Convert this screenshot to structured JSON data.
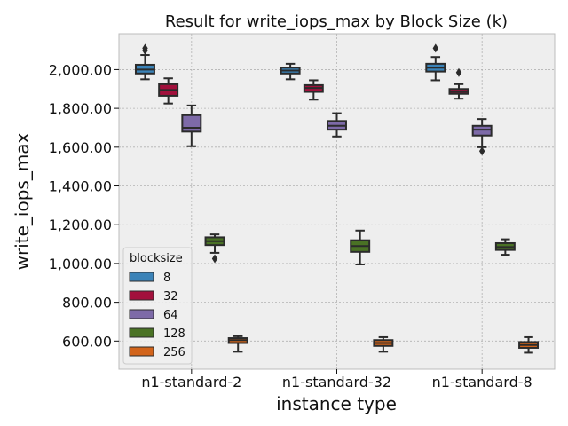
{
  "chart_data": {
    "type": "boxplot",
    "title": "Result for write_iops_max by Block Size (k)",
    "xlabel": "instance type",
    "ylabel": "write_iops_max",
    "categories": [
      "n1-standard-2",
      "n1-standard-32",
      "n1-standard-8"
    ],
    "ylim": [
      455,
      2185
    ],
    "yticks": [
      600,
      800,
      1000,
      1200,
      1400,
      1600,
      1800,
      2000
    ],
    "ytick_labels": [
      "600.00",
      "800.00",
      "1,000.00",
      "1,200.00",
      "1,400.00",
      "1,600.00",
      "1,800.00",
      "2,000.00"
    ],
    "grid": true,
    "legend": {
      "title": "blocksize",
      "position": "lower-left"
    },
    "series": [
      {
        "name": "8",
        "color": "#3b83b8",
        "boxes": [
          {
            "whislo": 1950,
            "q1": 1980,
            "med": 2000,
            "q3": 2025,
            "whishi": 2075,
            "fliers": [
              2098,
              2110
            ]
          },
          {
            "whislo": 1950,
            "q1": 1980,
            "med": 1995,
            "q3": 2010,
            "whishi": 2030,
            "fliers": []
          },
          {
            "whislo": 1945,
            "q1": 1990,
            "med": 2010,
            "q3": 2030,
            "whishi": 2065,
            "fliers": [
              2110
            ]
          }
        ]
      },
      {
        "name": "32",
        "color": "#a2103c",
        "boxes": [
          {
            "whislo": 1825,
            "q1": 1865,
            "med": 1895,
            "q3": 1925,
            "whishi": 1955,
            "fliers": []
          },
          {
            "whislo": 1845,
            "q1": 1885,
            "med": 1905,
            "q3": 1920,
            "whishi": 1945,
            "fliers": []
          },
          {
            "whislo": 1850,
            "q1": 1875,
            "med": 1885,
            "q3": 1900,
            "whishi": 1925,
            "fliers": [
              1985
            ]
          }
        ]
      },
      {
        "name": "64",
        "color": "#7d6aa8",
        "boxes": [
          {
            "whislo": 1605,
            "q1": 1680,
            "med": 1700,
            "q3": 1765,
            "whishi": 1815,
            "fliers": []
          },
          {
            "whislo": 1655,
            "q1": 1690,
            "med": 1710,
            "q3": 1735,
            "whishi": 1775,
            "fliers": []
          },
          {
            "whislo": 1600,
            "q1": 1660,
            "med": 1690,
            "q3": 1710,
            "whishi": 1745,
            "fliers": [
              1580
            ]
          }
        ]
      },
      {
        "name": "128",
        "color": "#4a7225",
        "boxes": [
          {
            "whislo": 1055,
            "q1": 1095,
            "med": 1115,
            "q3": 1135,
            "whishi": 1150,
            "fliers": [
              1025
            ]
          },
          {
            "whislo": 995,
            "q1": 1060,
            "med": 1090,
            "q3": 1120,
            "whishi": 1170,
            "fliers": []
          },
          {
            "whislo": 1045,
            "q1": 1070,
            "med": 1085,
            "q3": 1105,
            "whishi": 1125,
            "fliers": []
          }
        ]
      },
      {
        "name": "256",
        "color": "#d2641b",
        "boxes": [
          {
            "whislo": 545,
            "q1": 590,
            "med": 605,
            "q3": 615,
            "whishi": 625,
            "fliers": []
          },
          {
            "whislo": 545,
            "q1": 575,
            "med": 590,
            "q3": 605,
            "whishi": 620,
            "fliers": []
          },
          {
            "whislo": 540,
            "q1": 565,
            "med": 580,
            "q3": 595,
            "whishi": 620,
            "fliers": []
          }
        ]
      }
    ]
  }
}
